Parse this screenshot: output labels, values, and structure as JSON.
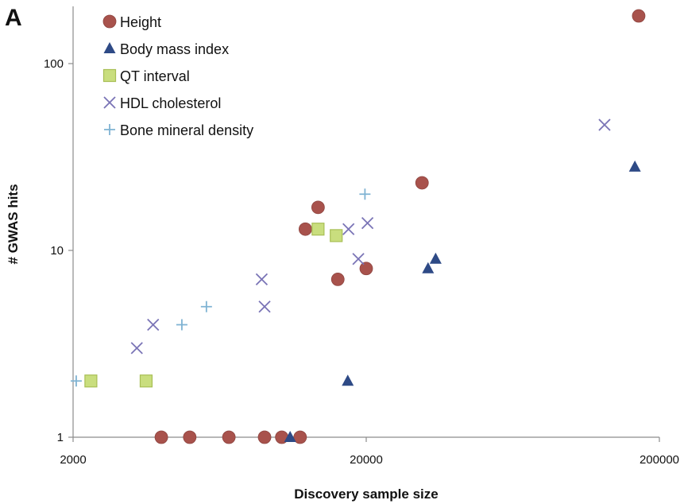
{
  "panel_label": "A",
  "chart_data": {
    "type": "scatter",
    "xlabel": "Discovery sample size",
    "ylabel": "# GWAS hits",
    "xscale": "log",
    "yscale": "log",
    "xlim": [
      2000,
      200000
    ],
    "ylim": [
      1,
      200
    ],
    "xticks": [
      {
        "value": 2000,
        "label": "2000"
      },
      {
        "value": 20000,
        "label": "20000"
      },
      {
        "value": 200000,
        "label": "200000"
      }
    ],
    "yticks": [
      {
        "value": 1,
        "label": "1"
      },
      {
        "value": 10,
        "label": "10"
      },
      {
        "value": 100,
        "label": "100"
      }
    ],
    "grid": false,
    "legend_position": "top-left",
    "series": [
      {
        "name": "Height",
        "marker": "circle",
        "color": "#a8524c",
        "points": [
          {
            "x": 4000,
            "y": 1
          },
          {
            "x": 5000,
            "y": 1
          },
          {
            "x": 6800,
            "y": 1
          },
          {
            "x": 9000,
            "y": 1
          },
          {
            "x": 10300,
            "y": 1
          },
          {
            "x": 11900,
            "y": 1
          },
          {
            "x": 12400,
            "y": 13
          },
          {
            "x": 13700,
            "y": 17
          },
          {
            "x": 16000,
            "y": 7
          },
          {
            "x": 20000,
            "y": 8
          },
          {
            "x": 31000,
            "y": 23
          },
          {
            "x": 170000,
            "y": 180
          }
        ]
      },
      {
        "name": "Body mass index",
        "marker": "triangle",
        "color": "#2e4a86",
        "points": [
          {
            "x": 11000,
            "y": 1
          },
          {
            "x": 17300,
            "y": 2
          },
          {
            "x": 32500,
            "y": 8
          },
          {
            "x": 34500,
            "y": 9
          },
          {
            "x": 165000,
            "y": 28
          }
        ]
      },
      {
        "name": "QT interval",
        "marker": "square",
        "color": "#c9de7e",
        "points": [
          {
            "x": 2300,
            "y": 2
          },
          {
            "x": 3550,
            "y": 2
          },
          {
            "x": 13700,
            "y": 13
          },
          {
            "x": 15800,
            "y": 12
          }
        ]
      },
      {
        "name": "HDL cholesterol",
        "marker": "x",
        "color": "#7a74b6",
        "points": [
          {
            "x": 3300,
            "y": 3
          },
          {
            "x": 3750,
            "y": 4
          },
          {
            "x": 8800,
            "y": 7
          },
          {
            "x": 9000,
            "y": 5
          },
          {
            "x": 17400,
            "y": 13
          },
          {
            "x": 18800,
            "y": 9
          },
          {
            "x": 20200,
            "y": 14
          },
          {
            "x": 130000,
            "y": 47
          }
        ]
      },
      {
        "name": "Bone mineral density",
        "marker": "plus",
        "color": "#7fb3d3",
        "points": [
          {
            "x": 2050,
            "y": 2
          },
          {
            "x": 4700,
            "y": 4
          },
          {
            "x": 5700,
            "y": 5
          },
          {
            "x": 19800,
            "y": 20
          }
        ]
      }
    ]
  }
}
